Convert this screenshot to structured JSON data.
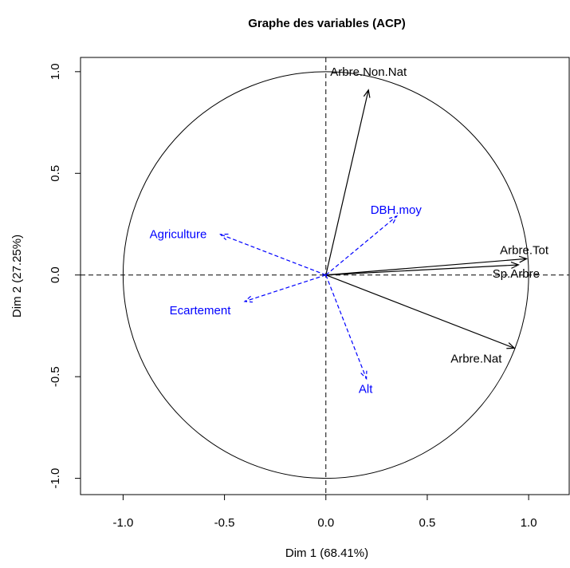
{
  "chart_data": {
    "type": "arrows",
    "title": "Graphe des variables (ACP)",
    "xlabel": "Dim 1 (68.41%)",
    "ylabel": "Dim 2 (27.25%)",
    "xlim": [
      -1.21,
      1.2
    ],
    "ylim": [
      -1.08,
      1.07
    ],
    "xticks": [
      {
        "value": -1,
        "label": "-1.0"
      },
      -0.5,
      {
        "value": 0,
        "label": "0.0"
      },
      0.5,
      {
        "value": 1,
        "label": "1.0"
      }
    ],
    "yticks": [
      {
        "value": -1,
        "label": "-1.0"
      },
      -0.5,
      {
        "value": 0,
        "label": "0.0"
      },
      0.5,
      {
        "value": 1,
        "label": "1.0"
      }
    ],
    "series": [
      {
        "color": "#000000",
        "dashed": false,
        "labels": [
          "Arbre.Non.Nat",
          "Arbre.Tot",
          "Sp.Arbre",
          "Arbre.Nat"
        ],
        "x": [
          0.21,
          0.99,
          0.95,
          0.93
        ],
        "y": [
          0.91,
          0.08,
          0.05,
          -0.36
        ]
      },
      {
        "color": "#0000ff",
        "dashed": true,
        "labels": [
          "DBH.moy",
          "Agriculture",
          "Ecartement",
          "Alt"
        ],
        "x": [
          0.35,
          -0.52,
          -0.4,
          0.2
        ],
        "y": [
          0.29,
          0.2,
          -0.13,
          -0.51
        ]
      }
    ]
  }
}
